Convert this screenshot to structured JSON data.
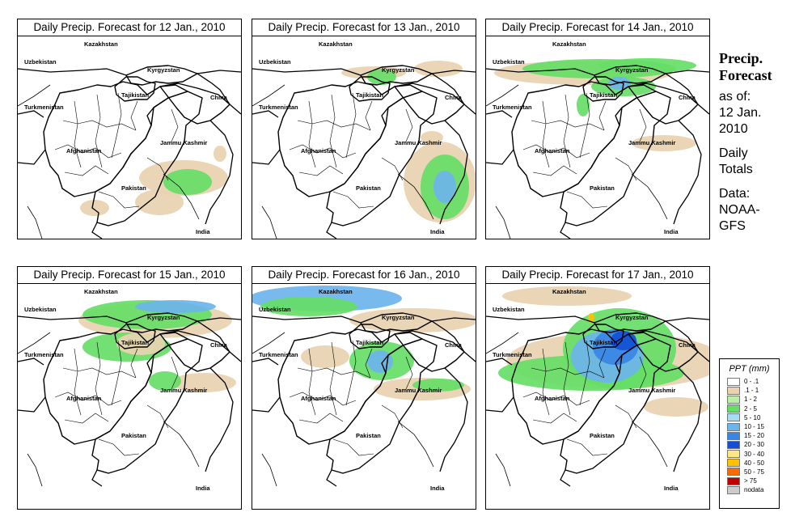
{
  "panels": [
    {
      "title": "Daily Precip. Forecast for  12 Jan., 2010",
      "day": 12
    },
    {
      "title": "Daily Precip. Forecast for  13 Jan., 2010",
      "day": 13
    },
    {
      "title": "Daily Precip. Forecast for  14 Jan., 2010",
      "day": 14
    },
    {
      "title": "Daily Precip. Forecast for  15 Jan., 2010",
      "day": 15
    },
    {
      "title": "Daily Precip. Forecast for  16 Jan., 2010",
      "day": 16
    },
    {
      "title": "Daily Precip. Forecast for  17 Jan., 2010",
      "day": 17
    }
  ],
  "map_labels": {
    "kazakhstan": "Kazakhstan",
    "uzbekistan": "Uzbekistan",
    "kyrgyzstan": "Kyrgyzstan",
    "tajikistan": "Tajikistan",
    "turkmenistan": "Turkmenistan",
    "china": "China",
    "jammu_kashmir": "Jammu Kashmir",
    "afghanistan": "Afghanistan",
    "pakistan": "Pakistan",
    "india": "India"
  },
  "sidebar": {
    "title_line1": "Precip.",
    "title_line2": "Forecast",
    "asof_line1": "as of:",
    "asof_line2": "12 Jan.",
    "asof_line3": "2010",
    "daily_line1": "Daily",
    "daily_line2": "Totals",
    "data_line1": "Data:",
    "data_line2": "NOAA-",
    "data_line3": "GFS"
  },
  "legend": {
    "title": "PPT (mm)",
    "items": [
      {
        "label": "0 - .1",
        "color": "#ffffff"
      },
      {
        "label": ".1 - 1",
        "color": "#e8d2b0"
      },
      {
        "label": "1 - 2",
        "color": "#b8f0a8"
      },
      {
        "label": "2 - 5",
        "color": "#66dd66"
      },
      {
        "label": "5 - 10",
        "color": "#a8dcf4"
      },
      {
        "label": "10 - 15",
        "color": "#6cb4ec"
      },
      {
        "label": "15 - 20",
        "color": "#3a86e6"
      },
      {
        "label": "20 - 30",
        "color": "#1450d6"
      },
      {
        "label": "30 - 40",
        "color": "#ffe680"
      },
      {
        "label": "40 - 50",
        "color": "#ffc000"
      },
      {
        "label": "50 - 75",
        "color": "#ff6a00"
      },
      {
        "label": "> 75",
        "color": "#c00000"
      },
      {
        "label": "nodata",
        "color": "#cccccc"
      }
    ]
  }
}
